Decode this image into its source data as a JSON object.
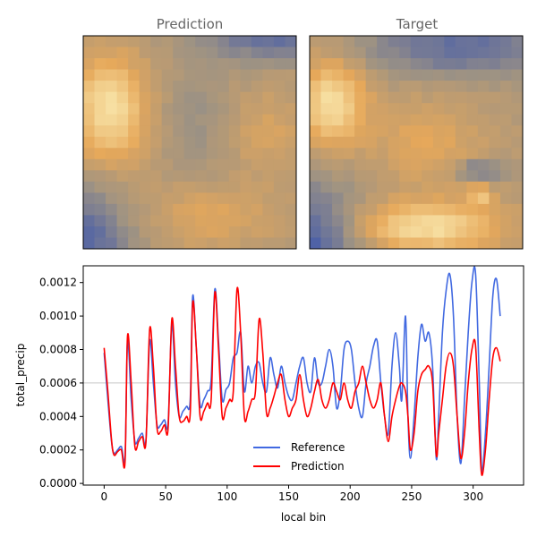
{
  "colors": {
    "reference": "#4169e1",
    "prediction": "#ff0000",
    "mean_line": "#c8c8c8"
  },
  "panels": {
    "left_title": "Prediction",
    "right_title": "Target"
  },
  "chart_data": [
    {
      "type": "heatmap",
      "title": "Prediction",
      "grid": [
        19,
        19
      ],
      "colormap": [
        "#4a5fa8",
        "#9c9284",
        "#e6a85a",
        "#faeab0"
      ],
      "description_levels": "low values blue (edges, bottom-left, top-right), high values pale yellow (upper-left)"
    },
    {
      "type": "heatmap",
      "title": "Target",
      "grid": [
        19,
        19
      ],
      "colormap": [
        "#4a5fa8",
        "#9c9284",
        "#e6a85a",
        "#faeab0"
      ]
    },
    {
      "type": "line",
      "xlabel": "local bin",
      "ylabel": "total_precip",
      "xlim": [
        -17,
        341
      ],
      "ylim": [
        -1e-05,
        0.0013
      ],
      "xticks": [
        "0",
        "50",
        "100",
        "150",
        "200",
        "250",
        "300"
      ],
      "yticks": [
        "0.0000",
        "0.0002",
        "0.0004",
        "0.0006",
        "0.0008",
        "0.0010",
        "0.0012"
      ],
      "hline": 0.0006,
      "legend": {
        "placement": "lower center",
        "entries": [
          "Reference",
          "Prediction"
        ]
      },
      "series": [
        {
          "name": "Reference",
          "color": "#4169e1",
          "points": [
            [
              0,
              0.00078
            ],
            [
              3,
              0.0005
            ],
            [
              6,
              0.00025
            ],
            [
              8,
              0.00018
            ],
            [
              11,
              0.0002
            ],
            [
              14,
              0.00022
            ],
            [
              17,
              0.00016
            ],
            [
              19,
              0.00085
            ],
            [
              22,
              0.0005
            ],
            [
              25,
              0.00025
            ],
            [
              28,
              0.00027
            ],
            [
              31,
              0.0003
            ],
            [
              34,
              0.00026
            ],
            [
              37,
              0.00085
            ],
            [
              40,
              0.0006
            ],
            [
              43,
              0.00035
            ],
            [
              46,
              0.00035
            ],
            [
              49,
              0.00038
            ],
            [
              52,
              0.00036
            ],
            [
              55,
              0.00095
            ],
            [
              58,
              0.0006
            ],
            [
              61,
              0.0004
            ],
            [
              64,
              0.00043
            ],
            [
              67,
              0.00046
            ],
            [
              70,
              0.0005
            ],
            [
              72,
              0.00112
            ],
            [
              75,
              0.0008
            ],
            [
              78,
              0.00047
            ],
            [
              81,
              0.0005
            ],
            [
              84,
              0.00055
            ],
            [
              87,
              0.00062
            ],
            [
              90,
              0.00116
            ],
            [
              93,
              0.00085
            ],
            [
              96,
              0.0005
            ],
            [
              99,
              0.00056
            ],
            [
              102,
              0.0006
            ],
            [
              105,
              0.00075
            ],
            [
              108,
              0.00078
            ],
            [
              111,
              0.0009
            ],
            [
              114,
              0.00055
            ],
            [
              117,
              0.0007
            ],
            [
              120,
              0.0006
            ],
            [
              123,
              0.0007
            ],
            [
              126,
              0.00072
            ],
            [
              129,
              0.0006
            ],
            [
              132,
              0.00055
            ],
            [
              135,
              0.00075
            ],
            [
              138,
              0.00065
            ],
            [
              141,
              0.00057
            ],
            [
              144,
              0.0007
            ],
            [
              147,
              0.0006
            ],
            [
              150,
              0.00052
            ],
            [
              153,
              0.0005
            ],
            [
              156,
              0.0006
            ],
            [
              159,
              0.0007
            ],
            [
              162,
              0.00075
            ],
            [
              165,
              0.0006
            ],
            [
              168,
              0.00055
            ],
            [
              171,
              0.00075
            ],
            [
              174,
              0.0006
            ],
            [
              177,
              0.0006
            ],
            [
              180,
              0.0007
            ],
            [
              183,
              0.0008
            ],
            [
              186,
              0.0007
            ],
            [
              189,
              0.00045
            ],
            [
              192,
              0.00055
            ],
            [
              195,
              0.0008
            ],
            [
              198,
              0.00085
            ],
            [
              201,
              0.0008
            ],
            [
              204,
              0.0006
            ],
            [
              207,
              0.00045
            ],
            [
              210,
              0.0004
            ],
            [
              213,
              0.0006
            ],
            [
              216,
              0.0007
            ],
            [
              219,
              0.00082
            ],
            [
              222,
              0.00085
            ],
            [
              225,
              0.0006
            ],
            [
              228,
              0.0004
            ],
            [
              231,
              0.0003
            ],
            [
              234,
              0.0007
            ],
            [
              237,
              0.0009
            ],
            [
              240,
              0.0007
            ],
            [
              242,
              0.0005
            ],
            [
              245,
              0.001
            ],
            [
              247,
              0.0004
            ],
            [
              249,
              0.00015
            ],
            [
              252,
              0.0004
            ],
            [
              255,
              0.00075
            ],
            [
              258,
              0.00095
            ],
            [
              261,
              0.00085
            ],
            [
              264,
              0.0009
            ],
            [
              267,
              0.0007
            ],
            [
              270,
              0.00015
            ],
            [
              272,
              0.0004
            ],
            [
              275,
              0.0009
            ],
            [
              278,
              0.00115
            ],
            [
              281,
              0.00125
            ],
            [
              284,
              0.001
            ],
            [
              287,
              0.0004
            ],
            [
              290,
              0.00012
            ],
            [
              293,
              0.0005
            ],
            [
              296,
              0.0009
            ],
            [
              299,
              0.0012
            ],
            [
              302,
              0.00125
            ],
            [
              305,
              0.0006
            ],
            [
              307,
              8e-05
            ],
            [
              310,
              0.0003
            ],
            [
              313,
              0.0007
            ],
            [
              316,
              0.00112
            ],
            [
              319,
              0.00122
            ],
            [
              322,
              0.001
            ]
          ]
        },
        {
          "name": "Prediction",
          "color": "#ff0000",
          "points": [
            [
              0,
              0.00081
            ],
            [
              3,
              0.00055
            ],
            [
              6,
              0.00026
            ],
            [
              8,
              0.00017
            ],
            [
              11,
              0.00019
            ],
            [
              14,
              0.0002
            ],
            [
              17,
              0.00013
            ],
            [
              19,
              0.00088
            ],
            [
              22,
              0.0006
            ],
            [
              25,
              0.00022
            ],
            [
              28,
              0.00025
            ],
            [
              31,
              0.00028
            ],
            [
              34,
              0.00025
            ],
            [
              37,
              0.00092
            ],
            [
              40,
              0.0007
            ],
            [
              43,
              0.00033
            ],
            [
              46,
              0.00031
            ],
            [
              49,
              0.00035
            ],
            [
              52,
              0.00033
            ],
            [
              55,
              0.00098
            ],
            [
              58,
              0.0007
            ],
            [
              61,
              0.0004
            ],
            [
              64,
              0.00037
            ],
            [
              67,
              0.0004
            ],
            [
              70,
              0.00042
            ],
            [
              72,
              0.00108
            ],
            [
              75,
              0.0008
            ],
            [
              78,
              0.0004
            ],
            [
              81,
              0.00043
            ],
            [
              84,
              0.00048
            ],
            [
              87,
              0.0005
            ],
            [
              90,
              0.00114
            ],
            [
              93,
              0.0008
            ],
            [
              96,
              0.0004
            ],
            [
              99,
              0.00045
            ],
            [
              102,
              0.0005
            ],
            [
              105,
              0.00055
            ],
            [
              108,
              0.00116
            ],
            [
              111,
              0.0009
            ],
            [
              114,
              0.0004
            ],
            [
              117,
              0.00043
            ],
            [
              120,
              0.0005
            ],
            [
              123,
              0.00055
            ],
            [
              126,
              0.00098
            ],
            [
              129,
              0.00078
            ],
            [
              132,
              0.00042
            ],
            [
              135,
              0.00045
            ],
            [
              138,
              0.00052
            ],
            [
              141,
              0.0006
            ],
            [
              144,
              0.00065
            ],
            [
              147,
              0.0005
            ],
            [
              150,
              0.0004
            ],
            [
              153,
              0.00045
            ],
            [
              156,
              0.0005
            ],
            [
              159,
              0.00065
            ],
            [
              162,
              0.0005
            ],
            [
              165,
              0.0004
            ],
            [
              168,
              0.00045
            ],
            [
              171,
              0.00055
            ],
            [
              174,
              0.00062
            ],
            [
              177,
              0.0005
            ],
            [
              180,
              0.00045
            ],
            [
              183,
              0.0005
            ],
            [
              186,
              0.0006
            ],
            [
              189,
              0.00055
            ],
            [
              192,
              0.0005
            ],
            [
              195,
              0.0006
            ],
            [
              198,
              0.0005
            ],
            [
              201,
              0.00045
            ],
            [
              204,
              0.00055
            ],
            [
              207,
              0.0006
            ],
            [
              210,
              0.0007
            ],
            [
              213,
              0.0006
            ],
            [
              216,
              0.0005
            ],
            [
              219,
              0.00045
            ],
            [
              222,
              0.0005
            ],
            [
              225,
              0.0006
            ],
            [
              228,
              0.0004
            ],
            [
              231,
              0.00025
            ],
            [
              234,
              0.0004
            ],
            [
              237,
              0.0005
            ],
            [
              240,
              0.00058
            ],
            [
              242,
              0.0006
            ],
            [
              245,
              0.00055
            ],
            [
              247,
              0.0004
            ],
            [
              249,
              0.0002
            ],
            [
              252,
              0.0003
            ],
            [
              255,
              0.00055
            ],
            [
              258,
              0.00065
            ],
            [
              261,
              0.00068
            ],
            [
              264,
              0.0007
            ],
            [
              267,
              0.0006
            ],
            [
              270,
              0.00017
            ],
            [
              272,
              0.0003
            ],
            [
              275,
              0.0005
            ],
            [
              278,
              0.0007
            ],
            [
              281,
              0.00078
            ],
            [
              284,
              0.0007
            ],
            [
              287,
              0.0004
            ],
            [
              290,
              0.00015
            ],
            [
              293,
              0.0003
            ],
            [
              296,
              0.0006
            ],
            [
              299,
              0.0008
            ],
            [
              302,
              0.00082
            ],
            [
              305,
              0.0003
            ],
            [
              307,
              5e-05
            ],
            [
              310,
              0.0002
            ],
            [
              313,
              0.0005
            ],
            [
              316,
              0.00075
            ],
            [
              319,
              0.00081
            ],
            [
              322,
              0.00073
            ]
          ]
        }
      ]
    }
  ]
}
